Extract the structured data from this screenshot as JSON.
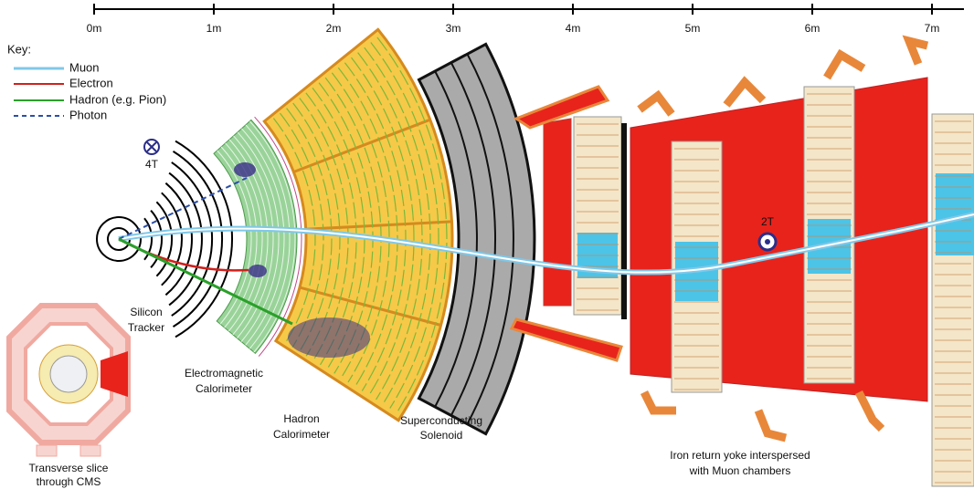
{
  "scale": {
    "labels": [
      "0m",
      "1m",
      "2m",
      "3m",
      "4m",
      "5m",
      "6m",
      "7m"
    ]
  },
  "key": {
    "title": "Key:",
    "entries": [
      "Muon",
      "Electron",
      "Hadron (e.g. Pion)",
      "Photon"
    ]
  },
  "field_labels": {
    "inner": "4T",
    "outer": "2T"
  },
  "labels": {
    "silicon_tracker": [
      "Silicon",
      "Tracker"
    ],
    "electromagnetic_calorimeter": [
      "Electromagnetic",
      "Calorimeter"
    ],
    "hadron_calorimeter": [
      "Hadron",
      "Calorimeter"
    ],
    "superconducting_solenoid": [
      "Superconducting",
      "Solenoid"
    ],
    "iron_return_yoke": [
      "Iron return yoke interspersed",
      "with Muon chambers"
    ],
    "transverse_slice": [
      "Transverse slice",
      "through CMS"
    ]
  }
}
